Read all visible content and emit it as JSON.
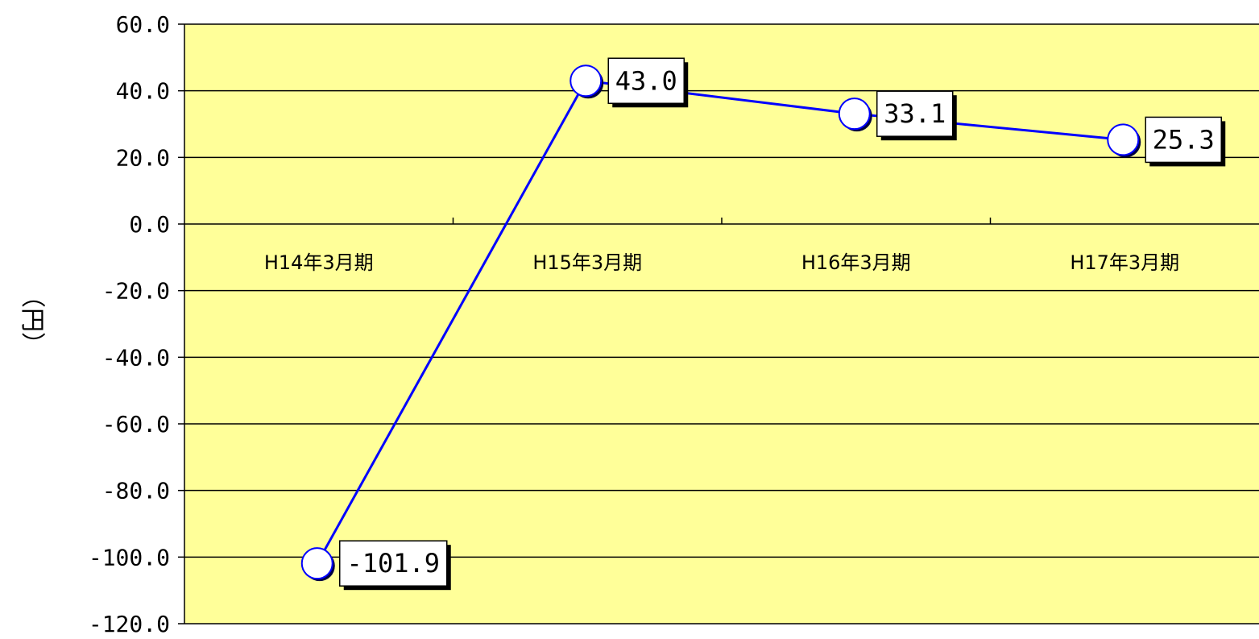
{
  "chart_data": {
    "type": "line",
    "title": "",
    "xlabel": "",
    "ylabel": "（円）",
    "categories": [
      "H14年3月期",
      "H15年3月期",
      "H16年3月期",
      "H17年3月期"
    ],
    "values": [
      -101.9,
      43.0,
      33.1,
      25.3
    ],
    "value_labels": [
      "-101.9",
      "43.0",
      "33.1",
      "25.3"
    ],
    "ylim": [
      -120,
      60
    ],
    "yticks": [
      60,
      40,
      20,
      0,
      -20,
      -40,
      -60,
      -80,
      -100,
      -120
    ],
    "ytick_labels": [
      "60.0",
      "40.0",
      "20.0",
      "0.0",
      "-20.0",
      "-40.0",
      "-60.0",
      "-80.0",
      "-100.0",
      "-120.0"
    ],
    "grid": true,
    "legend": "none",
    "colors": {
      "plot_background": "#FFFF99",
      "line": "#0000FF",
      "marker_fill": "#FFFFFF",
      "grid": "#000000"
    }
  }
}
